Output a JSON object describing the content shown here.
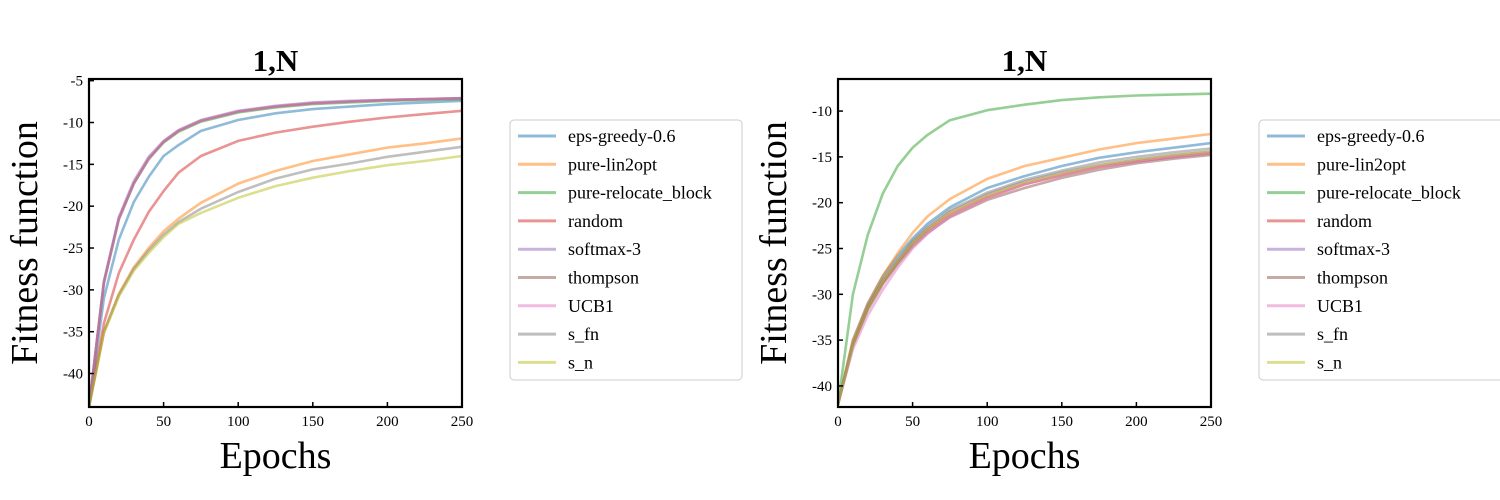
{
  "colors": {
    "eps-greedy-0.6": "#1f77b4",
    "pure-lin2opt": "#ff7f0e",
    "pure-relocate_block": "#2ca02c",
    "random": "#d62728",
    "softmax-3": "#9467bd",
    "thompson": "#8c564b",
    "UCB1": "#e377c2",
    "s_fn": "#7f7f7f",
    "s_n": "#bcbd22"
  },
  "chart_data": [
    {
      "type": "line",
      "title": "1,N",
      "xlabel": "Epochs",
      "ylabel": "Fitness function",
      "xlim": [
        0,
        250
      ],
      "ylim": [
        -44,
        -4.8
      ],
      "xticks": [
        0,
        50,
        100,
        150,
        200,
        250
      ],
      "yticks": [
        -40,
        -35,
        -30,
        -25,
        -20,
        -15,
        -10,
        -5
      ],
      "legend_position": "outside-right",
      "grid": false,
      "series": [
        {
          "name": "eps-greedy-0.6",
          "x": [
            0,
            10,
            20,
            30,
            40,
            50,
            60,
            75,
            100,
            125,
            150,
            175,
            200,
            225,
            250
          ],
          "values": [
            -44,
            -31,
            -24,
            -19.5,
            -16.5,
            -14,
            -12.7,
            -11,
            -9.7,
            -8.9,
            -8.4,
            -8.1,
            -7.8,
            -7.6,
            -7.4
          ]
        },
        {
          "name": "pure-lin2opt",
          "x": [
            0,
            10,
            20,
            30,
            40,
            50,
            60,
            75,
            100,
            125,
            150,
            175,
            200,
            225,
            250
          ],
          "values": [
            -44,
            -35,
            -30.5,
            -27.3,
            -25,
            -23,
            -21.5,
            -19.6,
            -17.3,
            -15.8,
            -14.6,
            -13.8,
            -13,
            -12.5,
            -11.9
          ]
        },
        {
          "name": "pure-relocate_block",
          "x": [
            0,
            10,
            20,
            30,
            40,
            50,
            60,
            75,
            100,
            125,
            150,
            175,
            200,
            225,
            250
          ],
          "values": [
            -44,
            -29,
            -21.5,
            -17.3,
            -14.3,
            -12.4,
            -11.1,
            -9.9,
            -8.8,
            -8.2,
            -7.8,
            -7.6,
            -7.4,
            -7.3,
            -7.2
          ]
        },
        {
          "name": "random",
          "x": [
            0,
            10,
            20,
            30,
            40,
            50,
            60,
            75,
            100,
            125,
            150,
            175,
            200,
            225,
            250
          ],
          "values": [
            -44,
            -34,
            -28,
            -24,
            -20.7,
            -18.2,
            -16,
            -14,
            -12.2,
            -11.2,
            -10.5,
            -9.9,
            -9.4,
            -9,
            -8.6
          ]
        },
        {
          "name": "softmax-3",
          "x": [
            0,
            10,
            20,
            30,
            40,
            50,
            60,
            75,
            100,
            125,
            150,
            175,
            200,
            225,
            250
          ],
          "values": [
            -44,
            -29,
            -21.3,
            -17,
            -14.1,
            -12.2,
            -10.9,
            -9.7,
            -8.6,
            -8,
            -7.6,
            -7.4,
            -7.3,
            -7.2,
            -7.1
          ]
        },
        {
          "name": "thompson",
          "x": [
            0,
            10,
            20,
            30,
            40,
            50,
            60,
            75,
            100,
            125,
            150,
            175,
            200,
            225,
            250
          ],
          "values": [
            -44,
            -29.2,
            -21.6,
            -17.3,
            -14.4,
            -12.3,
            -11,
            -9.8,
            -8.7,
            -8.1,
            -7.7,
            -7.5,
            -7.3,
            -7.2,
            -7.1
          ]
        },
        {
          "name": "UCB1",
          "x": [
            0,
            10,
            20,
            30,
            40,
            50,
            60,
            75,
            100,
            125,
            150,
            175,
            200,
            225,
            250
          ],
          "values": [
            -44,
            -29.1,
            -21.5,
            -17.2,
            -14.3,
            -12.3,
            -11,
            -9.8,
            -8.7,
            -8.1,
            -7.7,
            -7.5,
            -7.3,
            -7.2,
            -7.1
          ]
        },
        {
          "name": "s_fn",
          "x": [
            0,
            10,
            20,
            30,
            40,
            50,
            60,
            75,
            100,
            125,
            150,
            175,
            200,
            225,
            250
          ],
          "values": [
            -44,
            -35,
            -30.6,
            -27.5,
            -25.3,
            -23.4,
            -21.9,
            -20.3,
            -18.3,
            -16.7,
            -15.6,
            -14.9,
            -14.1,
            -13.5,
            -12.9
          ]
        },
        {
          "name": "s_n",
          "x": [
            0,
            10,
            20,
            30,
            40,
            50,
            60,
            75,
            100,
            125,
            150,
            175,
            200,
            225,
            250
          ],
          "values": [
            -44,
            -35.2,
            -30.8,
            -27.7,
            -25.6,
            -23.7,
            -22.1,
            -20.8,
            -19,
            -17.6,
            -16.6,
            -15.8,
            -15.1,
            -14.6,
            -14
          ]
        }
      ]
    },
    {
      "type": "line",
      "title": "1,N",
      "xlabel": "Epochs",
      "ylabel": "Fitness function",
      "xlim": [
        0,
        250
      ],
      "ylim": [
        -42.3,
        -6.5
      ],
      "xticks": [
        0,
        50,
        100,
        150,
        200,
        250
      ],
      "yticks": [
        -40,
        -35,
        -30,
        -25,
        -20,
        -15,
        -10
      ],
      "legend_position": "outside-right",
      "grid": false,
      "series": [
        {
          "name": "eps-greedy-0.6",
          "x": [
            0,
            10,
            20,
            30,
            40,
            50,
            60,
            75,
            100,
            125,
            150,
            175,
            200,
            225,
            250
          ],
          "values": [
            -42,
            -35,
            -31,
            -28,
            -25.8,
            -23.9,
            -22.3,
            -20.5,
            -18.4,
            -17.1,
            -16,
            -15.1,
            -14.5,
            -14,
            -13.5
          ]
        },
        {
          "name": "pure-lin2opt",
          "x": [
            0,
            10,
            20,
            30,
            40,
            50,
            60,
            75,
            100,
            125,
            150,
            175,
            200,
            225,
            250
          ],
          "values": [
            -42,
            -35,
            -31,
            -28,
            -25.5,
            -23.3,
            -21.5,
            -19.6,
            -17.4,
            -16,
            -15.1,
            -14.2,
            -13.5,
            -13,
            -12.5
          ]
        },
        {
          "name": "pure-relocate_block",
          "x": [
            0,
            10,
            20,
            30,
            40,
            50,
            60,
            75,
            100,
            125,
            150,
            175,
            200,
            225,
            250
          ],
          "values": [
            -42,
            -30,
            -23.5,
            -19,
            -16,
            -14,
            -12.6,
            -11,
            -9.9,
            -9.3,
            -8.8,
            -8.5,
            -8.3,
            -8.2,
            -8.1
          ]
        },
        {
          "name": "random",
          "x": [
            0,
            10,
            20,
            30,
            40,
            50,
            60,
            75,
            100,
            125,
            150,
            175,
            200,
            225,
            250
          ],
          "values": [
            -42,
            -35.5,
            -31.5,
            -28.7,
            -26.5,
            -24.5,
            -23,
            -21.3,
            -19.4,
            -18,
            -17,
            -16.1,
            -15.5,
            -15,
            -14.6
          ]
        },
        {
          "name": "softmax-3",
          "x": [
            0,
            10,
            20,
            30,
            40,
            50,
            60,
            75,
            100,
            125,
            150,
            175,
            200,
            225,
            250
          ],
          "values": [
            -42,
            -35.5,
            -31.4,
            -28.5,
            -26.3,
            -24.3,
            -22.8,
            -21,
            -19.1,
            -17.7,
            -16.7,
            -15.9,
            -15.3,
            -14.8,
            -14.4
          ]
        },
        {
          "name": "thompson",
          "x": [
            0,
            10,
            20,
            30,
            40,
            50,
            60,
            75,
            100,
            125,
            150,
            175,
            200,
            225,
            250
          ],
          "values": [
            -42,
            -35.6,
            -31.7,
            -28.9,
            -26.7,
            -24.8,
            -23.3,
            -21.6,
            -19.7,
            -18.4,
            -17.3,
            -16.4,
            -15.7,
            -15.2,
            -14.8
          ]
        },
        {
          "name": "UCB1",
          "x": [
            0,
            10,
            20,
            30,
            40,
            50,
            60,
            75,
            100,
            125,
            150,
            175,
            200,
            225,
            250
          ],
          "values": [
            -42,
            -36,
            -32.3,
            -29.5,
            -27.1,
            -25,
            -23.4,
            -21.5,
            -19.5,
            -18,
            -17,
            -16.1,
            -15.5,
            -15,
            -14.6
          ]
        },
        {
          "name": "s_fn",
          "x": [
            0,
            10,
            20,
            30,
            40,
            50,
            60,
            75,
            100,
            125,
            150,
            175,
            200,
            225,
            250
          ],
          "values": [
            -42,
            -35.4,
            -31.3,
            -28.4,
            -26.2,
            -24.2,
            -22.6,
            -20.8,
            -18.9,
            -17.5,
            -16.5,
            -15.6,
            -15,
            -14.5,
            -14.1
          ]
        },
        {
          "name": "s_n",
          "x": [
            0,
            10,
            20,
            30,
            40,
            50,
            60,
            75,
            100,
            125,
            150,
            175,
            200,
            225,
            250
          ],
          "values": [
            -42,
            -35.5,
            -31.5,
            -28.6,
            -26.4,
            -24.4,
            -22.9,
            -21.1,
            -19.2,
            -17.8,
            -16.8,
            -15.9,
            -15.3,
            -14.8,
            -14.4
          ]
        }
      ]
    }
  ]
}
